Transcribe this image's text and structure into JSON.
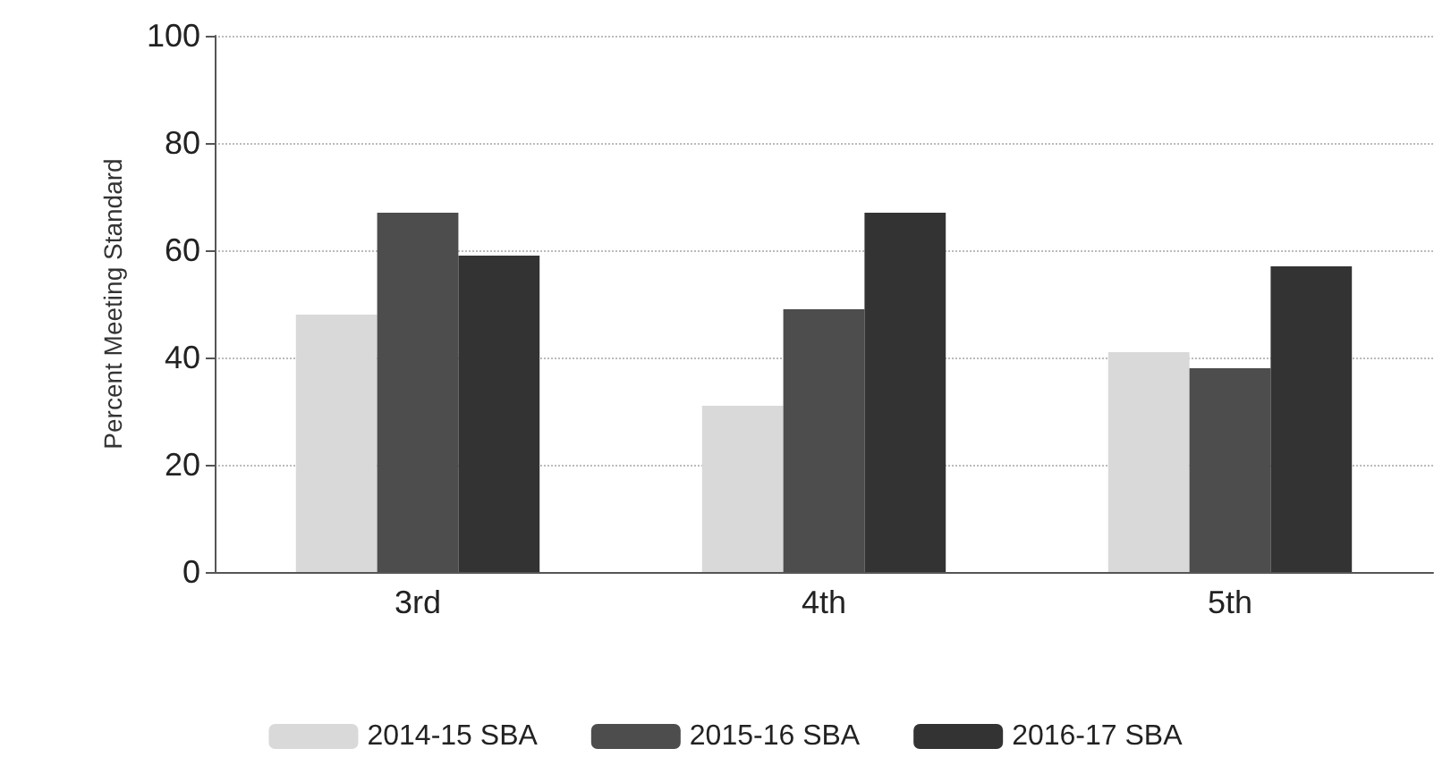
{
  "chart_data": {
    "type": "bar",
    "ylabel": "Percent Meeting Standard",
    "categories": [
      "3rd",
      "4th",
      "5th"
    ],
    "series": [
      {
        "name": "2014-15 SBA",
        "color": "#d9d9d9",
        "values": [
          48,
          31,
          41
        ]
      },
      {
        "name": "2015-16 SBA",
        "color": "#4d4d4d",
        "values": [
          67,
          49,
          38
        ]
      },
      {
        "name": "2016-17 SBA",
        "color": "#333333",
        "values": [
          59,
          67,
          57
        ]
      }
    ],
    "ylim": [
      0,
      100
    ],
    "yticks": [
      0,
      20,
      40,
      60,
      80,
      100
    ],
    "grid": "y",
    "legend": "bottom"
  }
}
